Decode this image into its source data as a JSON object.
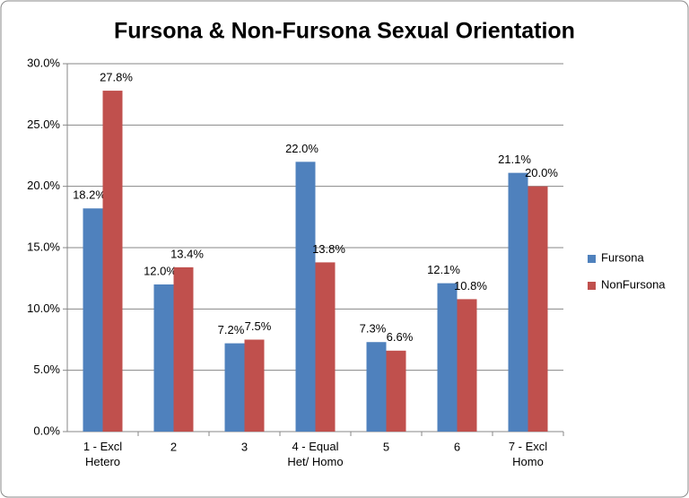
{
  "chart_data": {
    "type": "bar",
    "title": "Fursona & Non-Fursona Sexual Orientation",
    "categories": [
      "1 - Excl Hetero",
      "2",
      "3",
      "4 - Equal Het/ Homo",
      "5",
      "6",
      "7 - Excl Homo"
    ],
    "series": [
      {
        "name": "Fursona",
        "color": "#4f81bd",
        "values": [
          18.2,
          12.0,
          7.2,
          22.0,
          7.3,
          12.1,
          21.1
        ],
        "value_labels": [
          "18.2%",
          "12.0%",
          "7.2%",
          "22.0%",
          "7.3%",
          "12.1%",
          "21.1%"
        ]
      },
      {
        "name": "NonFursona",
        "color": "#c0504d",
        "values": [
          27.8,
          13.4,
          7.5,
          13.8,
          6.6,
          10.8,
          20.0
        ],
        "value_labels": [
          "27.8%",
          "13.4%",
          "7.5%",
          "13.8%",
          "6.6%",
          "10.8%",
          "20.0%"
        ]
      }
    ],
    "ylim": [
      0,
      30
    ],
    "yticks": [
      {
        "value": 0,
        "label": "0.0%"
      },
      {
        "value": 5,
        "label": "5.0%"
      },
      {
        "value": 10,
        "label": "10.0%"
      },
      {
        "value": 15,
        "label": "15.0%"
      },
      {
        "value": 20,
        "label": "20.0%"
      },
      {
        "value": 25,
        "label": "25.0%"
      },
      {
        "value": 30,
        "label": "30.0%"
      }
    ],
    "grid": true,
    "legend": "right"
  }
}
